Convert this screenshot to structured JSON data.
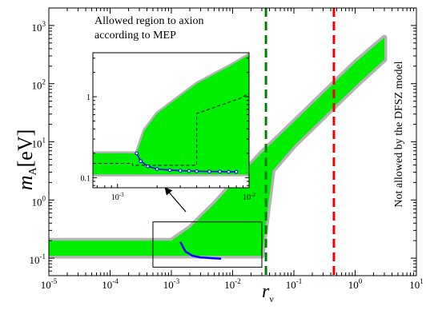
{
  "chart_data": [
    {
      "type": "area",
      "xscale": "log",
      "yscale": "log",
      "xlim": [
        1e-05,
        10
      ],
      "ylim": [
        0.05,
        2000
      ],
      "xticks": [
        {
          "value": 1e-05,
          "base": "10",
          "exp": "-5"
        },
        {
          "value": 0.0001,
          "base": "10",
          "exp": "-4"
        },
        {
          "value": 0.001,
          "base": "10",
          "exp": "-3"
        },
        {
          "value": 0.01,
          "base": "10",
          "exp": "-2"
        },
        {
          "value": 0.1,
          "base": "10",
          "exp": "-1"
        },
        {
          "value": 1,
          "base": "10",
          "exp": "0"
        },
        {
          "value": 10,
          "base": "10",
          "exp": "1"
        }
      ],
      "yticks": [
        {
          "value": 0.1,
          "base": "10",
          "exp": "-1"
        },
        {
          "value": 1,
          "base": "10",
          "exp": "0"
        },
        {
          "value": 10,
          "base": "10",
          "exp": "1"
        },
        {
          "value": 100,
          "base": "10",
          "exp": "2"
        },
        {
          "value": 1000,
          "base": "10",
          "exp": "3"
        }
      ],
      "xlabel": {
        "main": "r",
        "sub": "ν"
      },
      "ylabel": {
        "main": "m",
        "sub": "A",
        "unit": "[eV]"
      },
      "annotations": {
        "allowed_region": [
          "Allowed region to axion",
          "according to MEP"
        ],
        "not_allowed": "Not allowed by the DFSZ model"
      },
      "series": [
        {
          "role": "allowed-band",
          "color": "#00ee00",
          "upper": [
            [
              1e-05,
              0.2
            ],
            [
              0.001,
              0.2
            ],
            [
              0.002,
              0.33
            ],
            [
              0.005,
              0.85
            ],
            [
              0.01,
              1.9
            ],
            [
              0.03,
              6.5
            ],
            [
              0.1,
              22
            ],
            [
              1,
              230
            ],
            [
              3,
              620
            ]
          ],
          "lower": [
            [
              1e-05,
              0.11
            ],
            [
              0.03,
              0.11
            ],
            [
              0.045,
              3.2
            ],
            [
              0.1,
              8.5
            ],
            [
              1,
              90
            ],
            [
              3,
              260
            ]
          ]
        },
        {
          "role": "blue-curve",
          "color": "#0000ff",
          "points": [
            [
              0.0014,
              0.19
            ],
            [
              0.0017,
              0.13
            ],
            [
              0.0022,
              0.11
            ],
            [
              0.003,
              0.103
            ],
            [
              0.0045,
              0.1
            ],
            [
              0.0065,
              0.098
            ]
          ]
        },
        {
          "role": "vertical-line",
          "color": "#008000",
          "x": 0.035
        },
        {
          "role": "vertical-line",
          "color": "#ee0000",
          "x": 0.45
        },
        {
          "role": "zoom-box",
          "color": "#000000",
          "xrange": [
            0.0005,
            0.03
          ],
          "yrange": [
            0.07,
            0.42
          ]
        }
      ]
    },
    {
      "type": "area",
      "xscale": "log",
      "yscale": "log",
      "xlim": [
        0.00065,
        0.01
      ],
      "ylim": [
        0.075,
        3.5
      ],
      "xticks": [
        {
          "value": 0.001,
          "base": "10",
          "exp": "-3"
        },
        {
          "value": 0.01,
          "base": "10",
          "exp": "-2"
        }
      ],
      "yticks": [
        {
          "value": 0.1,
          "base": "",
          "exp": "0.1"
        },
        {
          "value": 1,
          "base": "",
          "exp": "1"
        }
      ],
      "series": [
        {
          "role": "allowed-band",
          "color": "#00ee00",
          "upper": [
            [
              0.00065,
              0.2
            ],
            [
              0.0014,
              0.2
            ],
            [
              0.0016,
              0.38
            ],
            [
              0.002,
              0.62
            ],
            [
              0.004,
              1.45
            ],
            [
              0.007,
              2.35
            ],
            [
              0.01,
              3.3
            ]
          ],
          "lower": [
            [
              0.00065,
              0.11
            ],
            [
              0.01,
              0.11
            ]
          ]
        },
        {
          "role": "blue-curve",
          "color": "#0000ff",
          "points": [
            [
              0.0014,
              0.2
            ],
            [
              0.0015,
              0.16
            ],
            [
              0.0017,
              0.138
            ],
            [
              0.002,
              0.128
            ],
            [
              0.0025,
              0.124
            ],
            [
              0.003,
              0.122
            ],
            [
              0.0035,
              0.121
            ],
            [
              0.004,
              0.12
            ],
            [
              0.005,
              0.119
            ],
            [
              0.006,
              0.119
            ],
            [
              0.007,
              0.118
            ],
            [
              0.008,
              0.118
            ]
          ]
        },
        {
          "role": "dashed-guide",
          "color": "#000000",
          "points": [
            [
              0.00065,
              0.15
            ],
            [
              0.0013,
              0.15
            ],
            [
              0.0013,
              0.142
            ],
            [
              0.004,
              0.142
            ],
            [
              0.004,
              0.62
            ],
            [
              0.0085,
              0.95
            ],
            [
              0.01,
              1.1
            ]
          ]
        }
      ]
    }
  ]
}
